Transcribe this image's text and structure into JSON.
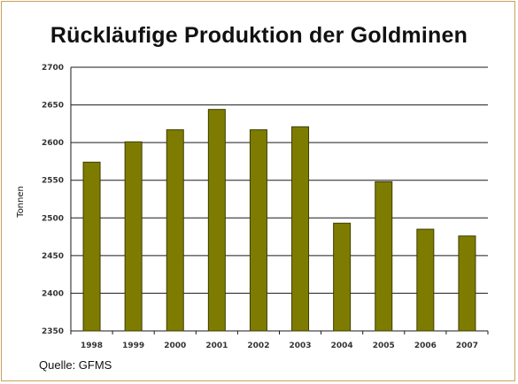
{
  "chart_data": {
    "type": "bar",
    "title": "Rückläufige Produktion der Goldminen",
    "xlabel": "",
    "ylabel": "Tonnen",
    "categories": [
      "1998",
      "1999",
      "2000",
      "2001",
      "2002",
      "2003",
      "2004",
      "2005",
      "2006",
      "2007"
    ],
    "values": [
      2574,
      2601,
      2617,
      2644,
      2617,
      2621,
      2493,
      2548,
      2485,
      2476
    ],
    "ylim": [
      2350,
      2700
    ],
    "yticks": [
      "2350",
      "2400",
      "2450",
      "2500",
      "2550",
      "2600",
      "2650",
      "2700"
    ],
    "grid": true,
    "bar_color": "#7e7c00",
    "source": "Quelle: GFMS"
  }
}
